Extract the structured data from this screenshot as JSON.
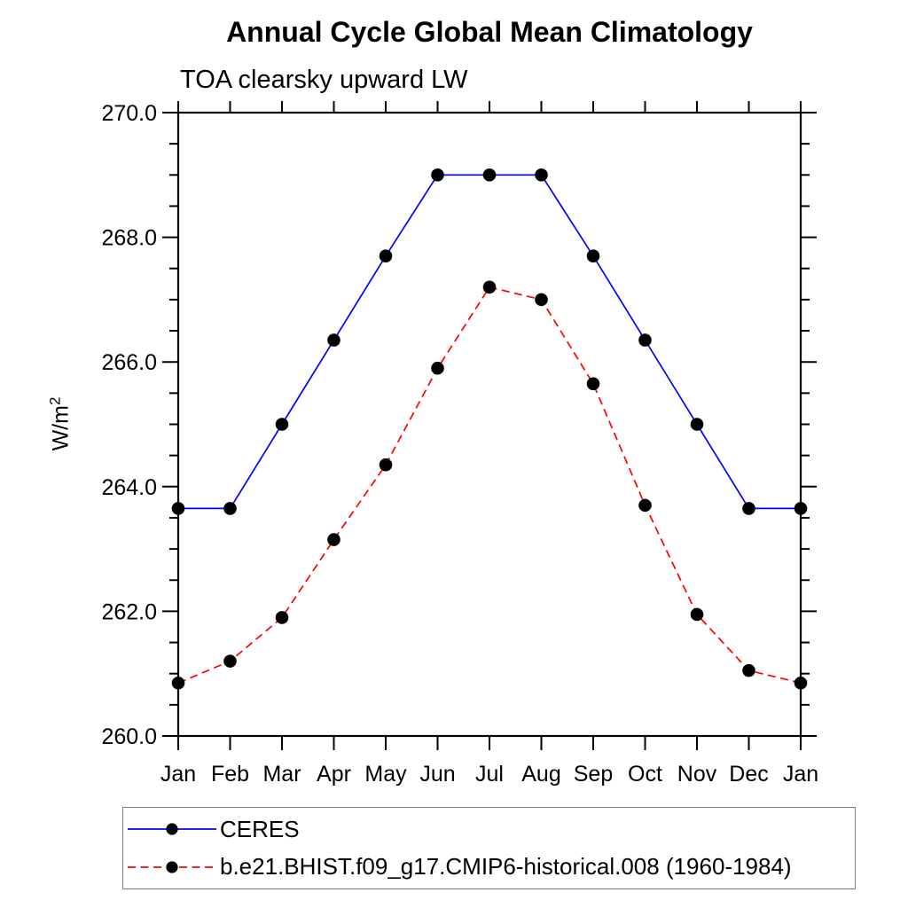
{
  "chart_data": {
    "type": "line",
    "title": "Annual Cycle Global Mean Climatology",
    "subtitle": "TOA clearsky upward LW",
    "ylabel_base": "W/m",
    "ylabel_exp": "2",
    "x_labels": [
      "Jan",
      "Feb",
      "Mar",
      "Apr",
      "May",
      "Jun",
      "Jul",
      "Aug",
      "Sep",
      "Oct",
      "Nov",
      "Dec",
      "Jan"
    ],
    "ylim": [
      260.0,
      270.0
    ],
    "ytick_major_step": 2.0,
    "ytick_minor_step": 0.5,
    "ytick_label_format_decimals": 1,
    "grid": "off",
    "frame": "box with outward ticks on all sides",
    "legend_position": "bottom-left",
    "series": [
      {
        "name": "CERES",
        "line_color": "#0000ff",
        "line_style": "solid",
        "marker": "filled-circle",
        "marker_color": "#000000",
        "values": [
          263.65,
          263.65,
          265.0,
          266.35,
          267.7,
          269.0,
          269.0,
          269.0,
          267.7,
          266.35,
          265.0,
          263.65,
          263.65
        ]
      },
      {
        "name": "b.e21.BHIST.f09_g17.CMIP6-historical.008 (1960-1984)",
        "line_color": "#ff0000",
        "line_style": "dashed",
        "marker": "filled-circle",
        "marker_color": "#000000",
        "values": [
          260.85,
          261.2,
          261.9,
          263.15,
          264.35,
          265.9,
          267.2,
          267.0,
          265.65,
          263.7,
          261.95,
          261.05,
          260.85
        ]
      }
    ]
  }
}
